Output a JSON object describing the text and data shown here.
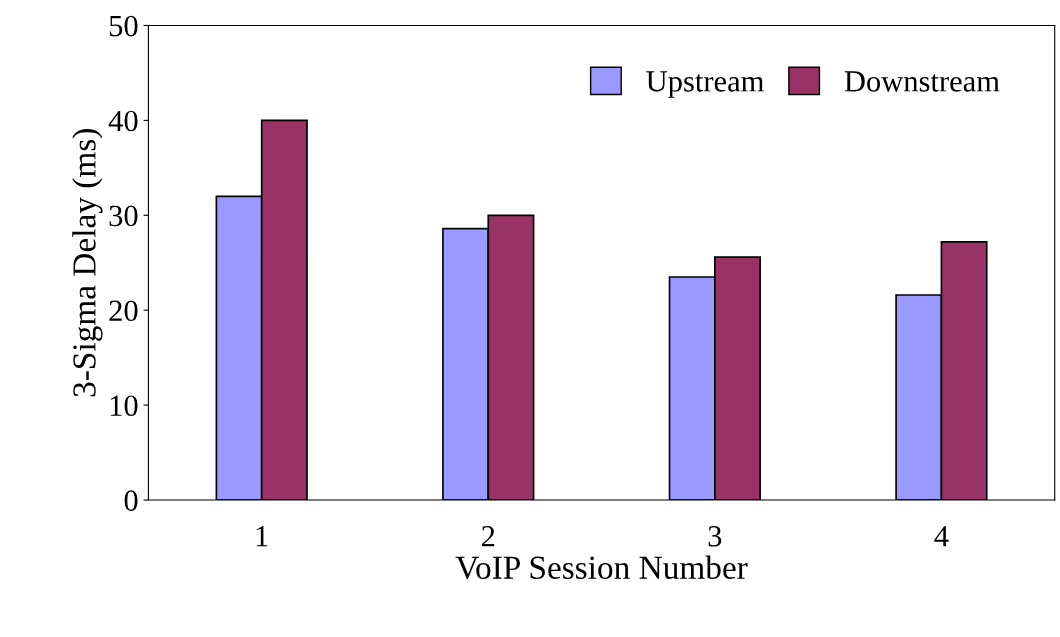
{
  "chart_data": {
    "type": "bar",
    "xlabel": "VoIP Session Number",
    "ylabel": "3-Sigma Delay (ms)",
    "categories": [
      "1",
      "2",
      "3",
      "4"
    ],
    "series": [
      {
        "name": "Upstream",
        "color": "#9999ff",
        "values": [
          32.0,
          28.6,
          23.5,
          21.6
        ]
      },
      {
        "name": "Downstream",
        "color": "#993366",
        "values": [
          40.0,
          30.0,
          25.6,
          27.2
        ]
      }
    ],
    "ylim": [
      0,
      50
    ],
    "yticks": [
      0,
      10,
      20,
      30,
      40,
      50
    ],
    "grid": false,
    "legend": "top right"
  }
}
